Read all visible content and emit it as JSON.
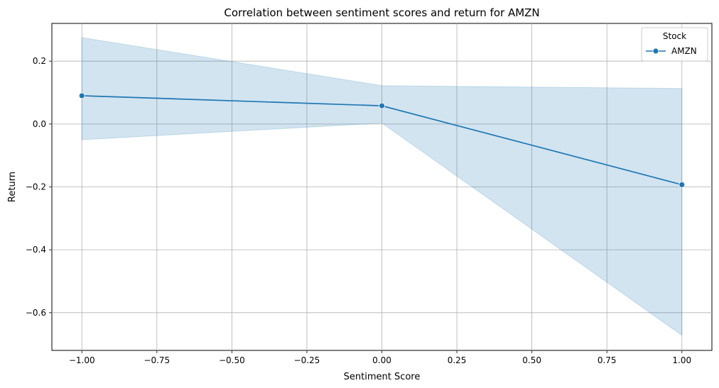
{
  "chart_data": {
    "type": "line",
    "title": "Correlation between sentiment scores and return for AMZN",
    "xlabel": "Sentiment Score",
    "ylabel": "Return",
    "xlim": [
      -1.1,
      1.1
    ],
    "ylim": [
      -0.72,
      0.32
    ],
    "xticks": [
      -1.0,
      -0.75,
      -0.5,
      -0.25,
      0.0,
      0.25,
      0.5,
      0.75,
      1.0
    ],
    "xtick_labels": [
      "−1.00",
      "−0.75",
      "−0.50",
      "−0.25",
      "0.00",
      "0.25",
      "0.50",
      "0.75",
      "1.00"
    ],
    "yticks": [
      0.2,
      0.0,
      -0.2,
      -0.4,
      -0.6
    ],
    "ytick_labels": [
      "0.2",
      "0.0",
      "−0.2",
      "−0.4",
      "−0.6"
    ],
    "grid": true,
    "legend": {
      "title": "Stock",
      "placement": "top-right"
    },
    "series": [
      {
        "name": "AMZN",
        "color": "#1f77b4",
        "x": [
          -1.0,
          0.0,
          1.0
        ],
        "y": [
          0.09,
          0.058,
          -0.193
        ],
        "ci_lower": [
          -0.05,
          0.003,
          -0.672
        ],
        "ci_upper": [
          0.275,
          0.122,
          0.113
        ]
      }
    ]
  }
}
